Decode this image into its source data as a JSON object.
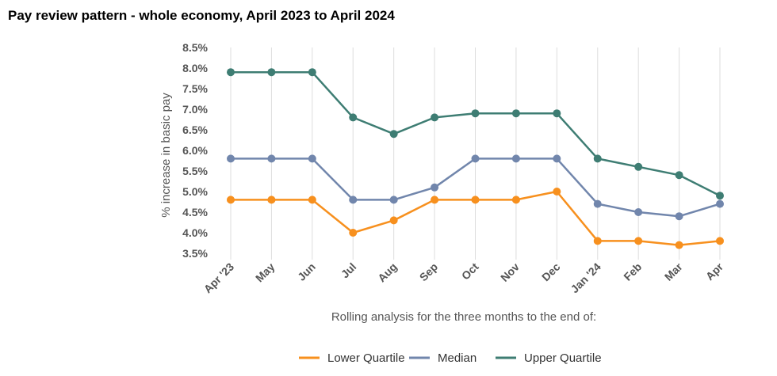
{
  "chart_data": {
    "type": "line",
    "title": "Pay review pattern - whole economy, April 2023 to April 2024",
    "xlabel": "Rolling analysis for the three months to the end of:",
    "ylabel": "% increase in basic pay",
    "categories": [
      "Apr '23",
      "May",
      "Jun",
      "Jul",
      "Aug",
      "Sep",
      "Oct",
      "Nov",
      "Dec",
      "Jan '24",
      "Feb",
      "Mar",
      "Apr"
    ],
    "yticks": [
      "3.5%",
      "4.0%",
      "4.5%",
      "5.0%",
      "5.5%",
      "6.0%",
      "6.5%",
      "7.0%",
      "7.5%",
      "8.0%",
      "8.5%"
    ],
    "ylim": [
      3.5,
      8.5
    ],
    "grid": "vertical",
    "legend_position": "bottom",
    "series": [
      {
        "name": "Lower Quartile",
        "color": "#F7901E",
        "values": [
          4.8,
          4.8,
          4.8,
          4.0,
          4.3,
          4.8,
          4.8,
          4.8,
          5.0,
          3.8,
          3.8,
          3.7,
          3.8
        ]
      },
      {
        "name": "Median",
        "color": "#7186AC",
        "values": [
          5.8,
          5.8,
          5.8,
          4.8,
          4.8,
          5.1,
          5.8,
          5.8,
          5.8,
          4.7,
          4.5,
          4.4,
          4.7
        ]
      },
      {
        "name": "Upper Quartile",
        "color": "#3E7D73",
        "values": [
          7.9,
          7.9,
          7.9,
          6.8,
          6.4,
          6.8,
          6.9,
          6.9,
          6.9,
          5.8,
          5.6,
          5.4,
          4.9
        ]
      }
    ]
  }
}
